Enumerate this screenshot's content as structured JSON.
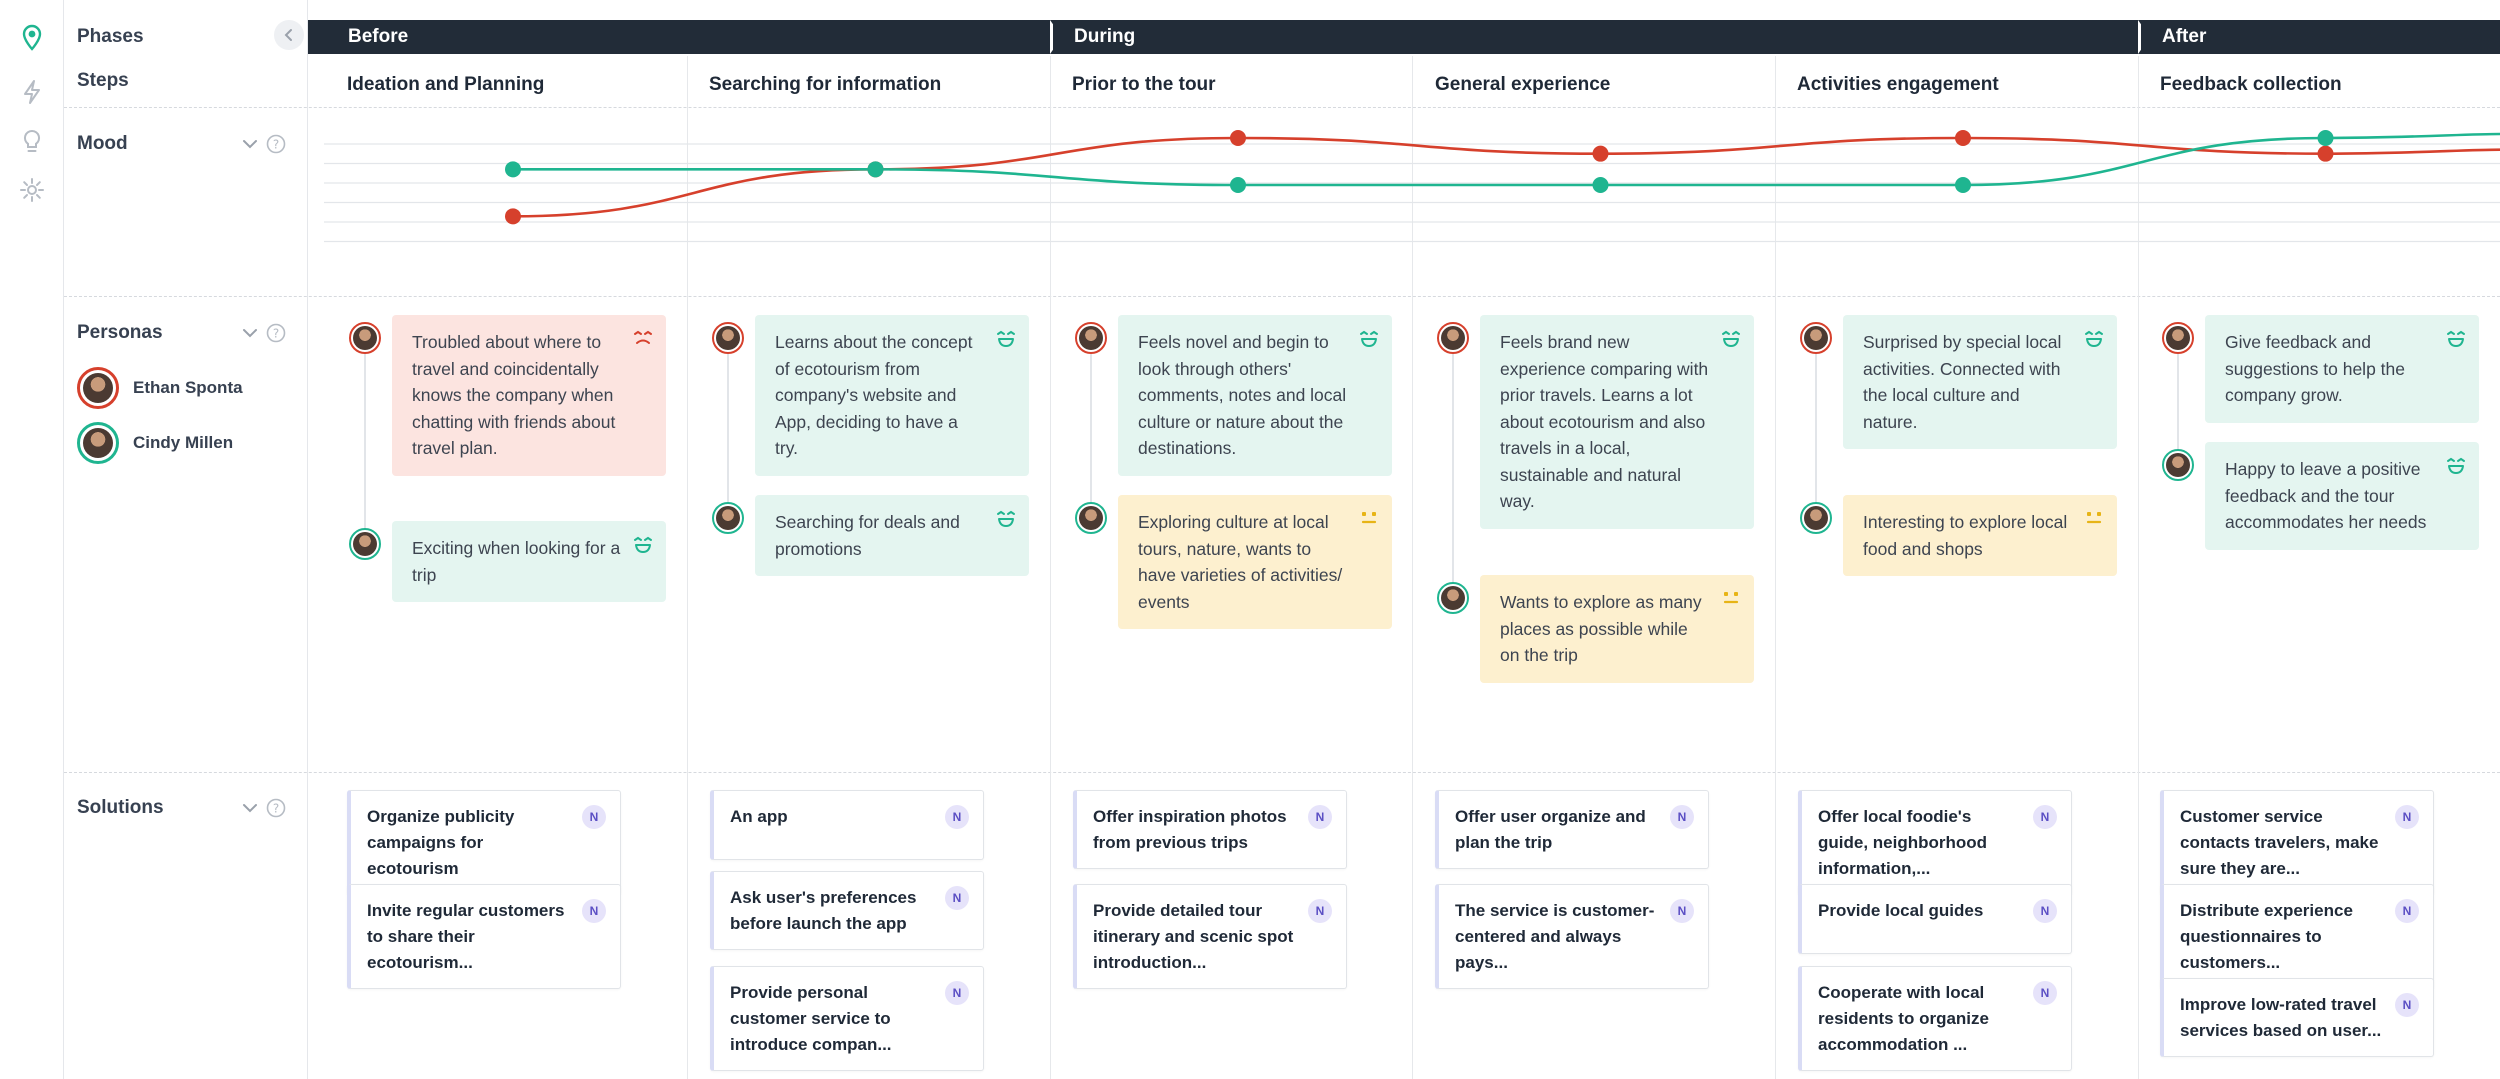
{
  "labels": {
    "phases": "Phases",
    "steps": "Steps",
    "mood": "Mood",
    "personas": "Personas",
    "solutions": "Solutions"
  },
  "personas": [
    {
      "name": "Ethan Sponta",
      "color": "#d6402c"
    },
    {
      "name": "Cindy Millen",
      "color": "#1fb590"
    }
  ],
  "phases": [
    "Before",
    "During",
    "After"
  ],
  "steps": [
    "Ideation and Planning",
    "Searching for information",
    "Prior to the tour",
    "General experience",
    "Activities engagement",
    "Feedback collection"
  ],
  "mood_levels": {
    "ethan": [
      1,
      4,
      6,
      5,
      6,
      5
    ],
    "cindy": [
      4,
      4,
      3,
      3,
      3,
      6
    ],
    "scale": [
      0,
      6
    ]
  },
  "cards": [
    [
      {
        "text": "Troubled about where to travel and coincidentally knows the company when chatting with friends about travel plan.",
        "mood": "negative"
      },
      {
        "text": "Exciting when looking for a trip",
        "mood": "positive"
      }
    ],
    [
      {
        "text": "Learns about the concept of ecotourism from company's website and App, deciding to have a try.",
        "mood": "positive"
      },
      {
        "text": "Searching for deals and promotions",
        "mood": "positive"
      }
    ],
    [
      {
        "text": "Feels novel and begin to look through others' comments, notes and local culture or nature about the destinations.",
        "mood": "positive"
      },
      {
        "text": "Exploring culture at local tours, nature, wants to have varieties of activities/ events",
        "mood": "neutral"
      }
    ],
    [
      {
        "text": "Feels brand new experience comparing with prior travels. Learns a lot about ecotourism and also travels in a local, sustainable and natural way.",
        "mood": "positive"
      },
      {
        "text": "Wants to explore as many places as possible while on the trip",
        "mood": "neutral"
      }
    ],
    [
      {
        "text": "Surprised by special local activities. Connected with the local culture and nature.",
        "mood": "positive"
      },
      {
        "text": "Interesting to explore local food and shops",
        "mood": "neutral"
      }
    ],
    [
      {
        "text": "Give feedback and suggestions to help the company grow.",
        "mood": "positive"
      },
      {
        "text": "Happy to leave a positive feedback and the tour accommodates her needs",
        "mood": "positive"
      }
    ]
  ],
  "solutions": [
    [
      "Organize publicity campaigns for ecotourism",
      "Invite regular customers to share their ecotourism..."
    ],
    [
      "An app",
      "Ask user's preferences before launch the app",
      "Provide personal customer service to introduce compan..."
    ],
    [
      "Offer inspiration photos from previous trips",
      "Provide detailed tour itinerary and scenic spot introduction..."
    ],
    [
      "Offer user organize and plan the trip",
      "The service is customer-centered and always pays..."
    ],
    [
      "Offer local foodie's guide, neighborhood information,...",
      "Provide local guides",
      "Cooperate with local residents to organize accommodation ..."
    ],
    [
      "Customer service contacts travelers, make sure they are...",
      "Distribute experience questionnaires to customers...",
      "Improve low-rated travel services based on user..."
    ]
  ],
  "badge_label": "N",
  "colors": {
    "ethan": "#d6402c",
    "cindy": "#1fb590",
    "phase_bar": "#222c38",
    "positive": "#1fb590",
    "neutral": "#e7b416",
    "negative": "#d6402c"
  }
}
